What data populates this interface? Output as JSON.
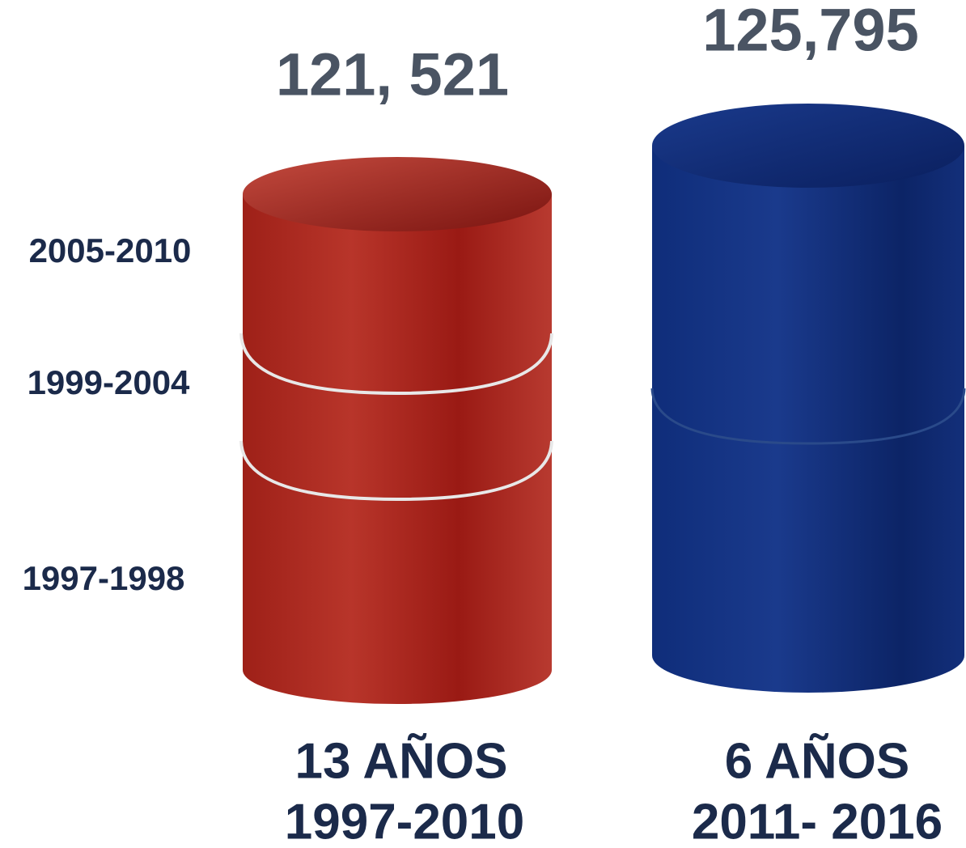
{
  "columns": [
    {
      "value_label": "121, 521",
      "caption": [
        "13 AÑOS",
        "1997-2010"
      ],
      "segments": [
        "2005-2010",
        "1999-2004",
        "1997-1998"
      ]
    },
    {
      "value_label": "125,795",
      "caption": [
        "6 AÑOS",
        "2011- 2016"
      ]
    }
  ]
}
